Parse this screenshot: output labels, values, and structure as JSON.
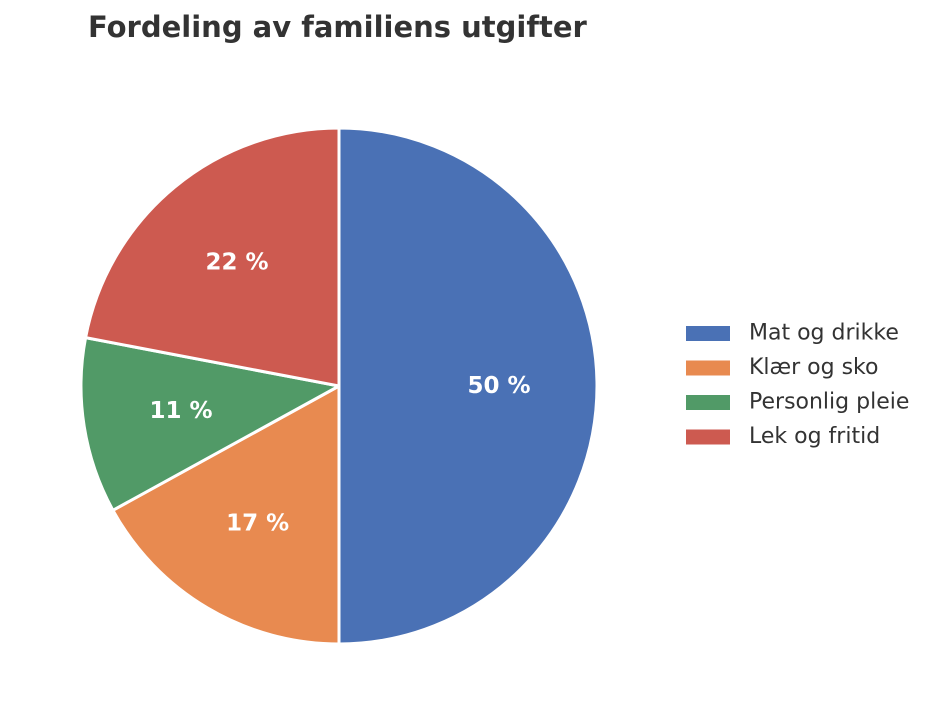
{
  "chart_data": {
    "type": "pie",
    "title": "Fordeling av familiens utgifter",
    "slices": [
      {
        "label": "Mat og drikke",
        "value": 50,
        "display": "50 %",
        "color": "#4a71b5"
      },
      {
        "label": "Klær og sko",
        "value": 17,
        "display": "17 %",
        "color": "#e88a50"
      },
      {
        "label": "Personlig pleie",
        "value": 11,
        "display": "11 %",
        "color": "#519a67"
      },
      {
        "label": "Lek og fritid",
        "value": 22,
        "display": "22 %",
        "color": "#cd5a50"
      }
    ],
    "start_angle_deg": 90,
    "direction": "clockwise",
    "legend_position": "right"
  }
}
